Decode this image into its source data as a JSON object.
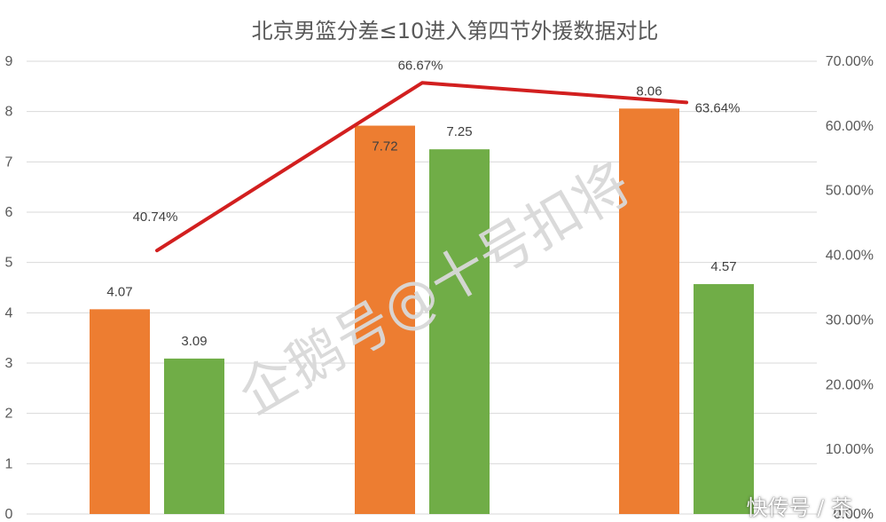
{
  "chart_data": {
    "type": "bar",
    "title": "北京男篮分差≤10进入第四节外援数据对比",
    "ylim": [
      0,
      9
    ],
    "y_ticks": [
      "0",
      "1",
      "2",
      "3",
      "4",
      "5",
      "6",
      "7",
      "8",
      "9"
    ],
    "y2lim": [
      0,
      70
    ],
    "y2_ticks": [
      "0.00%",
      "10.00%",
      "20.00%",
      "30.00%",
      "40.00%",
      "50.00%",
      "60.00%",
      "70.00%"
    ],
    "categories": [
      "",
      "",
      ""
    ],
    "series": [
      {
        "values": [
          4.07,
          7.72,
          8.06
        ],
        "labels": [
          "4.07",
          "7.72",
          "8.06"
        ],
        "color": "#ED7D31",
        "type": "bar"
      },
      {
        "values": [
          3.09,
          7.25,
          4.57
        ],
        "labels": [
          "3.09",
          "7.25",
          "4.57"
        ],
        "color": "#70AD47",
        "type": "bar"
      },
      {
        "values": [
          40.74,
          66.67,
          63.64
        ],
        "labels": [
          "40.74%",
          "66.67%",
          "63.64%"
        ],
        "color": "#D21F1F",
        "type": "line",
        "axis": "secondary"
      }
    ],
    "grid": true,
    "legend": "none"
  },
  "watermark": {
    "text": "企鹅号@十号扣将"
  },
  "footer": {
    "credit": "快传号 / 茶"
  }
}
